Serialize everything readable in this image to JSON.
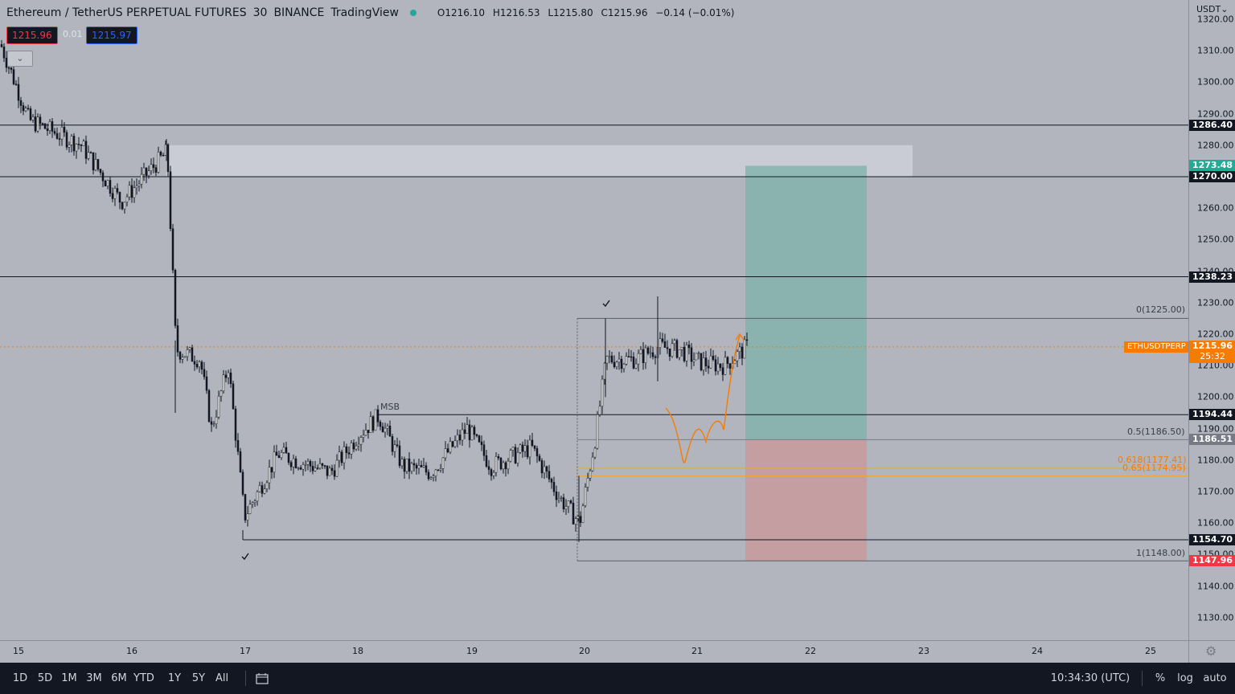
{
  "header": {
    "symbol_name": "Ethereum / TetherUS PERPETUAL FUTURES",
    "interval": "30",
    "exchange": "BINANCE",
    "brand": "TradingView",
    "ohlc": {
      "open": "O1216.10",
      "high": "H1216.53",
      "low": "L1215.80",
      "close": "C1215.96",
      "change": "−0.14 (−0.01%)"
    }
  },
  "quote": {
    "bid": "1215.96",
    "spread": "0.01",
    "ask": "1215.97"
  },
  "currency_selector": "USDT",
  "price_axis": {
    "ticks": [
      "1320.00",
      "1310.00",
      "1300.00",
      "1290.00",
      "1280.00",
      "1260.00",
      "1250.00",
      "1240.00",
      "1230.00",
      "1220.00",
      "1210.00",
      "1200.00",
      "1190.00",
      "1180.00",
      "1170.00",
      "1160.00",
      "1150.00",
      "1140.00",
      "1130.00"
    ],
    "levels": [
      {
        "price": 1286.4,
        "label": "1286.40",
        "color": "#131722"
      },
      {
        "price": 1273.48,
        "label": "1273.48",
        "color": "#22ab94"
      },
      {
        "price": 1270.0,
        "label": "1270.00",
        "color": "#131722"
      },
      {
        "price": 1238.23,
        "label": "1238.23",
        "color": "#131722"
      },
      {
        "price": 1194.44,
        "label": "1194.44",
        "color": "#131722"
      },
      {
        "price": 1186.51,
        "label": "1186.51",
        "color": "#787b86"
      },
      {
        "price": 1154.7,
        "label": "1154.70",
        "color": "#131722"
      },
      {
        "price": 1147.96,
        "label": "1147.96",
        "color": "#f23645"
      }
    ],
    "current": {
      "price": 1215.96,
      "label": "1215.96",
      "countdown": "25:32",
      "symbol_tag": "ETHUSDTPERP",
      "color": "#f57c00"
    }
  },
  "time_axis": {
    "labels": [
      "15",
      "16",
      "17",
      "18",
      "19",
      "20",
      "21",
      "22",
      "23",
      "24",
      "25"
    ]
  },
  "annotations": {
    "fib_0": "0(1225.00)",
    "fib_05": "0.5(1186.50)",
    "fib_0618": "0.618(1177.41)",
    "fib_065": "0.65(1174.95)",
    "fib_1": "1(1148.00)",
    "msb": "MSB"
  },
  "bottom_bar": {
    "ranges": [
      "1D",
      "5D",
      "1M",
      "3M",
      "6M",
      "YTD",
      "1Y",
      "5Y",
      "All"
    ],
    "clock": "10:34:30 (UTC)",
    "percent": "%",
    "log": "log",
    "auto": "auto"
  },
  "chart_data": {
    "type": "candlestick",
    "price_range": [
      1122,
      1322
    ],
    "position_tool": {
      "entry": 1186.51,
      "target": 1273.48,
      "stop": 1147.96
    },
    "key_points": [
      {
        "x": 0,
        "p": 1312
      },
      {
        "x": 35,
        "p": 1288
      },
      {
        "x": 100,
        "p": 1280
      },
      {
        "x": 150,
        "p": 1262
      },
      {
        "x": 207,
        "p": 1278
      },
      {
        "x": 218,
        "p": 1215
      },
      {
        "x": 248,
        "p": 1212
      },
      {
        "x": 262,
        "p": 1190
      },
      {
        "x": 283,
        "p": 1210
      },
      {
        "x": 303,
        "p": 1162
      },
      {
        "x": 320,
        "p": 1170
      },
      {
        "x": 345,
        "p": 1182
      },
      {
        "x": 410,
        "p": 1176
      },
      {
        "x": 445,
        "p": 1188
      },
      {
        "x": 470,
        "p": 1194
      },
      {
        "x": 500,
        "p": 1178
      },
      {
        "x": 535,
        "p": 1176
      },
      {
        "x": 580,
        "p": 1190
      },
      {
        "x": 610,
        "p": 1178
      },
      {
        "x": 660,
        "p": 1184
      },
      {
        "x": 695,
        "p": 1168
      },
      {
        "x": 720,
        "p": 1160
      },
      {
        "x": 740,
        "p": 1188
      },
      {
        "x": 753,
        "p": 1212
      },
      {
        "x": 790,
        "p": 1212
      },
      {
        "x": 818,
        "p": 1216
      },
      {
        "x": 845,
        "p": 1215
      },
      {
        "x": 870,
        "p": 1211
      },
      {
        "x": 900,
        "p": 1210
      },
      {
        "x": 928,
        "p": 1216
      }
    ]
  }
}
